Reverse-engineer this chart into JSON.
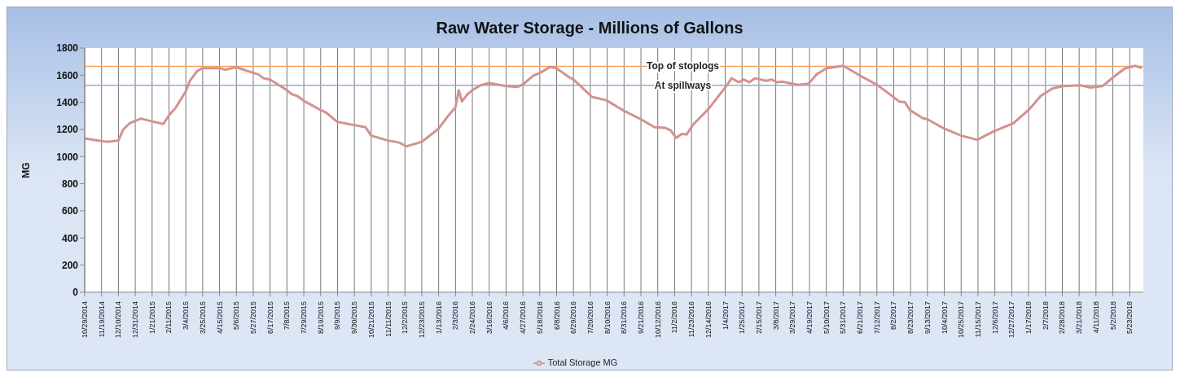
{
  "chart_data": {
    "type": "line",
    "title": "Raw Water Storage - Millions of Gallons",
    "ylabel": "MG",
    "x": [
      "2014-10-29",
      "2014-11-19",
      "2014-11-26",
      "2014-12-10",
      "2014-12-16",
      "2014-12-24",
      "2015-01-07",
      "2015-01-21",
      "2015-02-04",
      "2015-02-11",
      "2015-02-19",
      "2015-03-04",
      "2015-03-09",
      "2015-03-18",
      "2015-03-25",
      "2015-04-15",
      "2015-04-22",
      "2015-05-06",
      "2015-05-27",
      "2015-06-02",
      "2015-06-09",
      "2015-06-17",
      "2015-07-08",
      "2015-07-14",
      "2015-07-21",
      "2015-07-29",
      "2015-08-19",
      "2015-08-26",
      "2015-09-09",
      "2015-09-30",
      "2015-10-14",
      "2015-10-21",
      "2015-11-11",
      "2015-11-25",
      "2015-12-04",
      "2015-12-23",
      "2016-01-13",
      "2016-01-24",
      "2016-02-03",
      "2016-02-07",
      "2016-02-11",
      "2016-02-18",
      "2016-02-24",
      "2016-03-05",
      "2016-03-16",
      "2016-04-06",
      "2016-04-20",
      "2016-04-27",
      "2016-05-10",
      "2016-05-18",
      "2016-05-31",
      "2016-06-08",
      "2016-06-23",
      "2016-06-29",
      "2016-07-22",
      "2016-08-09",
      "2016-08-31",
      "2016-09-21",
      "2016-10-08",
      "2016-10-21",
      "2016-10-28",
      "2016-11-04",
      "2016-11-11",
      "2016-11-17",
      "2016-11-25",
      "2016-12-14",
      "2017-01-06",
      "2017-01-12",
      "2017-01-21",
      "2017-01-27",
      "2017-02-03",
      "2017-02-10",
      "2017-02-24",
      "2017-03-03",
      "2017-03-09",
      "2017-03-16",
      "2017-03-31",
      "2017-04-05",
      "2017-04-18",
      "2017-04-28",
      "2017-05-10",
      "2017-05-31",
      "2017-06-21",
      "2017-07-12",
      "2017-07-28",
      "2017-08-09",
      "2017-08-16",
      "2017-08-22",
      "2017-09-07",
      "2017-09-13",
      "2017-10-04",
      "2017-10-25",
      "2017-11-14",
      "2017-12-05",
      "2017-12-29",
      "2018-01-18",
      "2018-02-01",
      "2018-02-16",
      "2018-03-01",
      "2018-03-23",
      "2018-04-04",
      "2018-04-19",
      "2018-05-03",
      "2018-05-17",
      "2018-05-30",
      "2018-06-07"
    ],
    "series": [
      {
        "name": "Total Storage MG",
        "color": "#d39290",
        "values": [
          1134,
          1114,
          1109,
          1118,
          1200,
          1245,
          1280,
          1259,
          1240,
          1304,
          1357,
          1480,
          1558,
          1630,
          1652,
          1652,
          1640,
          1659,
          1616,
          1607,
          1577,
          1568,
          1489,
          1460,
          1446,
          1411,
          1343,
          1323,
          1255,
          1232,
          1216,
          1154,
          1118,
          1103,
          1075,
          1109,
          1206,
          1294,
          1363,
          1489,
          1407,
          1460,
          1489,
          1525,
          1542,
          1519,
          1513,
          1532,
          1597,
          1616,
          1661,
          1650,
          1587,
          1568,
          1440,
          1415,
          1337,
          1275,
          1216,
          1212,
          1193,
          1138,
          1167,
          1163,
          1236,
          1349,
          1525,
          1577,
          1548,
          1568,
          1548,
          1577,
          1558,
          1568,
          1548,
          1552,
          1534,
          1529,
          1538,
          1607,
          1650,
          1669,
          1597,
          1529,
          1460,
          1405,
          1401,
          1343,
          1284,
          1275,
          1206,
          1154,
          1124,
          1187,
          1245,
          1349,
          1446,
          1503,
          1519,
          1525,
          1509,
          1519,
          1587,
          1650,
          1669,
          1652
        ]
      }
    ],
    "ref_lines": [
      {
        "axis": "y",
        "value": 1665,
        "label": "Top of stoplogs",
        "color": "#f5a45c"
      },
      {
        "axis": "y",
        "value": 1525,
        "label": "At spillways",
        "color": "#8fa9d6"
      }
    ],
    "xlim": [
      "2014-10-29",
      "2018-06-09"
    ],
    "xticks": [
      {
        "value": "2014-10-29",
        "label": "10/29/2014"
      },
      {
        "value": "2014-11-19",
        "label": "11/19/2014"
      },
      {
        "value": "2014-12-10",
        "label": "12/10/2014"
      },
      {
        "value": "2014-12-31",
        "label": "12/31/2014"
      },
      {
        "value": "2015-01-21",
        "label": "1/21/2015"
      },
      {
        "value": "2015-02-11",
        "label": "2/11/2015"
      },
      {
        "value": "2015-03-04",
        "label": "3/4/2015"
      },
      {
        "value": "2015-03-25",
        "label": "3/25/2015"
      },
      {
        "value": "2015-04-15",
        "label": "4/15/2015"
      },
      {
        "value": "2015-05-06",
        "label": "5/6/2015"
      },
      {
        "value": "2015-05-27",
        "label": "5/27/2015"
      },
      {
        "value": "2015-06-17",
        "label": "6/17/2015"
      },
      {
        "value": "2015-07-08",
        "label": "7/8/2015"
      },
      {
        "value": "2015-07-29",
        "label": "7/29/2015"
      },
      {
        "value": "2015-08-19",
        "label": "8/19/2015"
      },
      {
        "value": "2015-09-09",
        "label": "9/9/2015"
      },
      {
        "value": "2015-09-30",
        "label": "9/30/2015"
      },
      {
        "value": "2015-10-21",
        "label": "10/21/2015"
      },
      {
        "value": "2015-11-11",
        "label": "11/11/2015"
      },
      {
        "value": "2015-12-02",
        "label": "12/2/2015"
      },
      {
        "value": "2015-12-23",
        "label": "12/23/2015"
      },
      {
        "value": "2016-01-13",
        "label": "1/13/2016"
      },
      {
        "value": "2016-02-03",
        "label": "2/3/2016"
      },
      {
        "value": "2016-02-24",
        "label": "2/24/2016"
      },
      {
        "value": "2016-03-16",
        "label": "3/16/2016"
      },
      {
        "value": "2016-04-06",
        "label": "4/6/2016"
      },
      {
        "value": "2016-04-27",
        "label": "4/27/2016"
      },
      {
        "value": "2016-05-18",
        "label": "5/18/2016"
      },
      {
        "value": "2016-06-08",
        "label": "6/8/2016"
      },
      {
        "value": "2016-06-29",
        "label": "6/29/2016"
      },
      {
        "value": "2016-07-20",
        "label": "7/20/2016"
      },
      {
        "value": "2016-08-10",
        "label": "8/10/2016"
      },
      {
        "value": "2016-08-31",
        "label": "8/31/2016"
      },
      {
        "value": "2016-09-21",
        "label": "9/21/2016"
      },
      {
        "value": "2016-10-12",
        "label": "10/12/2016"
      },
      {
        "value": "2016-11-02",
        "label": "11/2/2016"
      },
      {
        "value": "2016-11-23",
        "label": "11/23/2016"
      },
      {
        "value": "2016-12-14",
        "label": "12/14/2016"
      },
      {
        "value": "2017-01-04",
        "label": "1/4/2017"
      },
      {
        "value": "2017-01-25",
        "label": "1/25/2017"
      },
      {
        "value": "2017-02-15",
        "label": "2/15/2017"
      },
      {
        "value": "2017-03-08",
        "label": "3/8/2017"
      },
      {
        "value": "2017-03-29",
        "label": "3/29/2017"
      },
      {
        "value": "2017-04-19",
        "label": "4/19/2017"
      },
      {
        "value": "2017-05-10",
        "label": "5/10/2017"
      },
      {
        "value": "2017-05-31",
        "label": "5/31/2017"
      },
      {
        "value": "2017-06-21",
        "label": "6/21/2017"
      },
      {
        "value": "2017-07-12",
        "label": "7/12/2017"
      },
      {
        "value": "2017-08-02",
        "label": "8/2/2017"
      },
      {
        "value": "2017-08-23",
        "label": "8/23/2017"
      },
      {
        "value": "2017-09-13",
        "label": "9/13/2017"
      },
      {
        "value": "2017-10-04",
        "label": "10/4/2017"
      },
      {
        "value": "2017-10-25",
        "label": "10/25/2017"
      },
      {
        "value": "2017-11-15",
        "label": "11/15/2017"
      },
      {
        "value": "2017-12-06",
        "label": "12/6/2017"
      },
      {
        "value": "2017-12-27",
        "label": "12/27/2017"
      },
      {
        "value": "2018-01-17",
        "label": "1/17/2018"
      },
      {
        "value": "2018-02-07",
        "label": "2/7/2018"
      },
      {
        "value": "2018-02-28",
        "label": "2/28/2018"
      },
      {
        "value": "2018-03-21",
        "label": "3/21/2018"
      },
      {
        "value": "2018-04-11",
        "label": "4/11/2018"
      },
      {
        "value": "2018-05-02",
        "label": "5/2/2018"
      },
      {
        "value": "2018-05-23",
        "label": "5/23/2018"
      }
    ],
    "ylim": [
      0,
      1800
    ],
    "yticks": [
      0,
      200,
      400,
      600,
      800,
      1000,
      1200,
      1400,
      1600,
      1800
    ],
    "grid": true,
    "legend": "bottom",
    "marker": "none",
    "line_style": "solid"
  }
}
